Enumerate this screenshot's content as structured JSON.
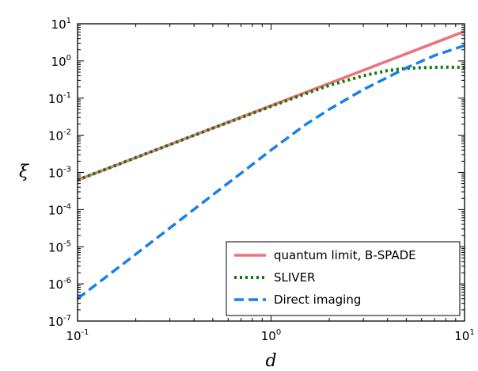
{
  "chart_data": {
    "type": "line",
    "title": "",
    "xlabel": "d",
    "ylabel": "ξ",
    "x_scale": "log",
    "y_scale": "log",
    "xlim": [
      0.1,
      10
    ],
    "ylim": [
      1e-07,
      10
    ],
    "x_ticks": [
      {
        "base": "10",
        "exp": "-1",
        "value": 0.1
      },
      {
        "base": "10",
        "exp": "0",
        "value": 1
      },
      {
        "base": "10",
        "exp": "1",
        "value": 10
      }
    ],
    "y_ticks": [
      {
        "base": "10",
        "exp": "1",
        "value": 10
      },
      {
        "base": "10",
        "exp": "0",
        "value": 1
      },
      {
        "base": "10",
        "exp": "-1",
        "value": 0.1
      },
      {
        "base": "10",
        "exp": "-2",
        "value": 0.01
      },
      {
        "base": "10",
        "exp": "-3",
        "value": 0.001
      },
      {
        "base": "10",
        "exp": "-4",
        "value": 0.0001
      },
      {
        "base": "10",
        "exp": "-5",
        "value": 1e-05
      },
      {
        "base": "10",
        "exp": "-6",
        "value": 1e-06
      },
      {
        "base": "10",
        "exp": "-7",
        "value": 1e-07
      }
    ],
    "grid": false,
    "legend_position": "bottom-right",
    "series": [
      {
        "name": "quantum limit, B-SPADE",
        "color": "#f0707b",
        "style": "solid",
        "x": [
          0.1,
          0.2,
          0.5,
          1,
          2,
          5,
          10
        ],
        "y": [
          0.000625,
          0.0025,
          0.0156,
          0.0625,
          0.25,
          1.56,
          6.25
        ]
      },
      {
        "name": "SLIVER",
        "color": "#0a7a0a",
        "style": "dotted",
        "x": [
          0.1,
          0.2,
          0.5,
          1,
          1.5,
          2,
          3,
          4,
          5,
          6,
          8,
          10
        ],
        "y": [
          0.000625,
          0.0025,
          0.0155,
          0.06,
          0.13,
          0.22,
          0.4,
          0.55,
          0.63,
          0.66,
          0.68,
          0.67
        ]
      },
      {
        "name": "Direct imaging",
        "color": "#1a7fe8",
        "style": "dashed",
        "x": [
          0.1,
          0.15,
          0.2,
          0.3,
          0.5,
          0.7,
          1,
          1.5,
          2,
          3,
          5,
          7,
          10
        ],
        "y": [
          4e-07,
          2e-06,
          6.3e-06,
          3.2e-05,
          0.00025,
          0.00095,
          0.004,
          0.019,
          0.05,
          0.17,
          0.65,
          1.4,
          2.6
        ]
      }
    ]
  }
}
